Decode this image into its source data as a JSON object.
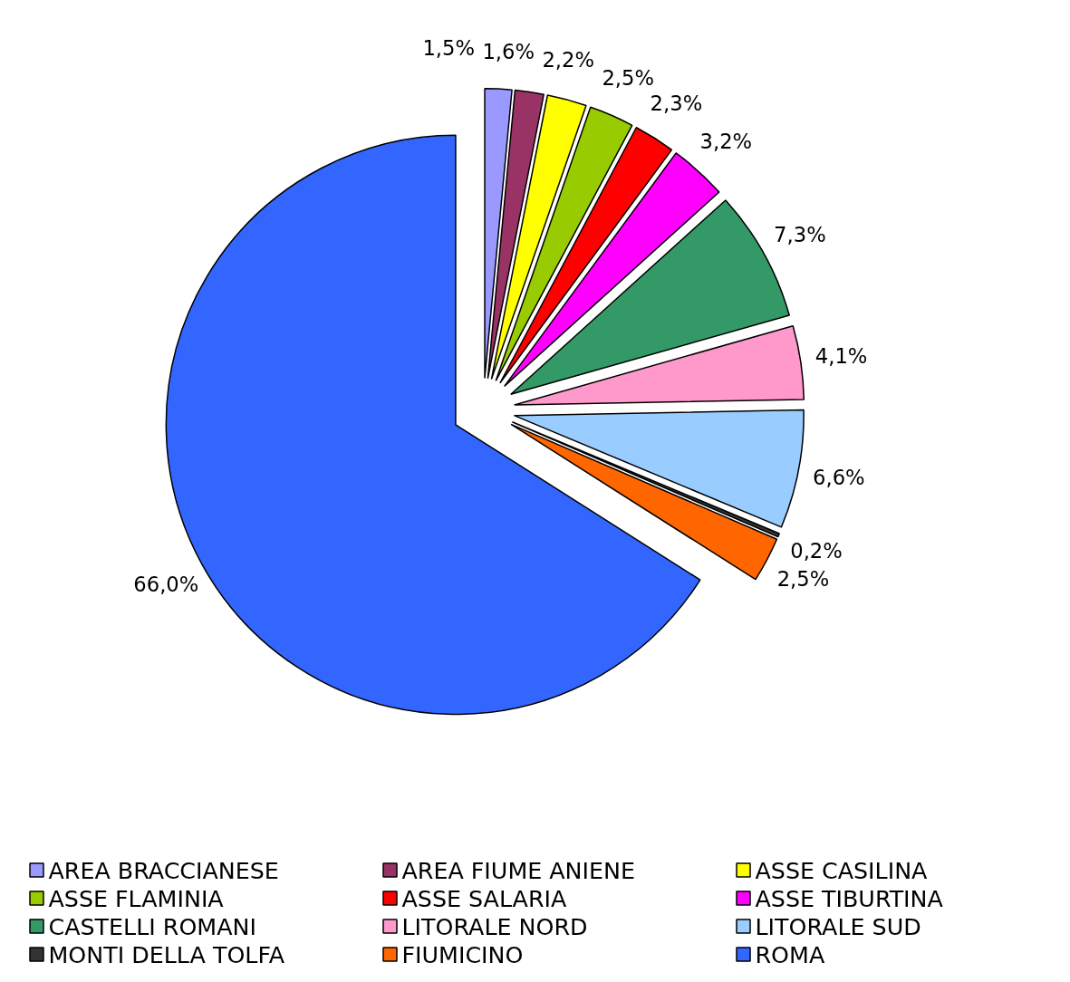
{
  "chart_data": {
    "type": "pie",
    "categories": [
      "AREA BRACCIANESE",
      "AREA FIUME ANIENE",
      "ASSE CASILINA",
      "ASSE FLAMINIA",
      "ASSE SALARIA",
      "ASSE TIBURTINA",
      "CASTELLI ROMANI",
      "LITORALE NORD",
      "LITORALE SUD",
      "MONTI DELLA TOLFA",
      "FIUMICINO",
      "ROMA"
    ],
    "values": [
      1.5,
      1.6,
      2.2,
      2.5,
      2.3,
      3.2,
      7.3,
      4.1,
      6.6,
      0.2,
      2.5,
      66.0
    ],
    "colors": [
      "#9999ff",
      "#993366",
      "#ffff00",
      "#99cc00",
      "#ff0000",
      "#ff00ff",
      "#339966",
      "#ff99cc",
      "#99ccff",
      "#333333",
      "#ff6600",
      "#3366ff"
    ],
    "value_labels": [
      "1,5%",
      "1,6%",
      "2,2%",
      "2,5%",
      "2,3%",
      "3,2%",
      "7,3%",
      "4,1%",
      "6,6%",
      "0,2%",
      "2,5%",
      "66,0%"
    ],
    "legend": "bottom"
  }
}
